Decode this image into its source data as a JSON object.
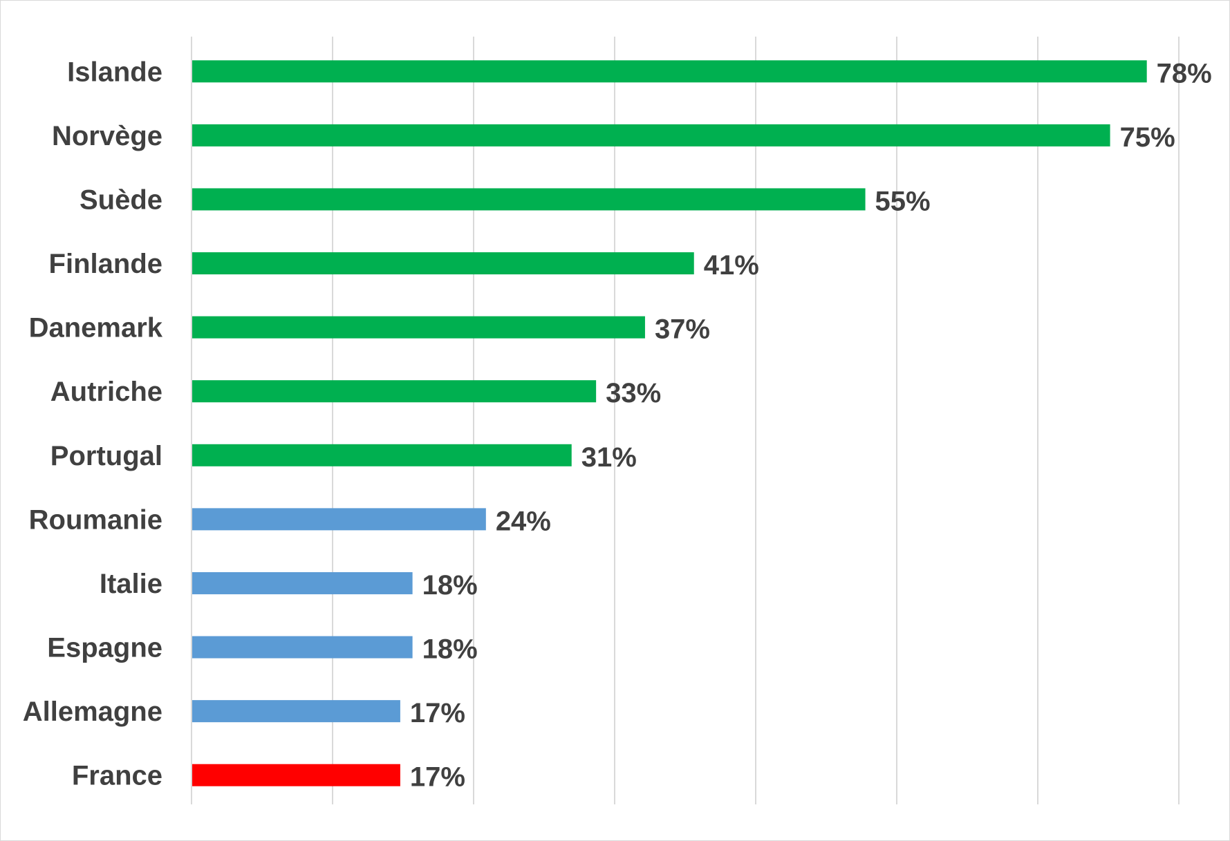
{
  "chart_data": {
    "type": "bar",
    "orientation": "horizontal",
    "title": "",
    "xlabel": "",
    "ylabel": "",
    "xlim": [
      0,
      100
    ],
    "grid": true,
    "categories": [
      "Islande",
      "Norvège",
      "Suède",
      "Finlande",
      "Danemark",
      "Autriche",
      "Portugal",
      "Roumanie",
      "Italie",
      "Espagne",
      "Allemagne",
      "France"
    ],
    "values": [
      78,
      75,
      55,
      41,
      37,
      33,
      31,
      24,
      18,
      18,
      17,
      17
    ],
    "value_labels": [
      "78%",
      "75%",
      "55%",
      "41%",
      "37%",
      "33%",
      "31%",
      "24%",
      "18%",
      "18%",
      "17%",
      "17%"
    ],
    "bar_colors": [
      "#00b050",
      "#00b050",
      "#00b050",
      "#00b050",
      "#00b050",
      "#00b050",
      "#00b050",
      "#5b9bd5",
      "#5b9bd5",
      "#5b9bd5",
      "#5b9bd5",
      "#ff0000"
    ],
    "gridline_color": "#d9d9d9",
    "text_color": "#404040"
  }
}
